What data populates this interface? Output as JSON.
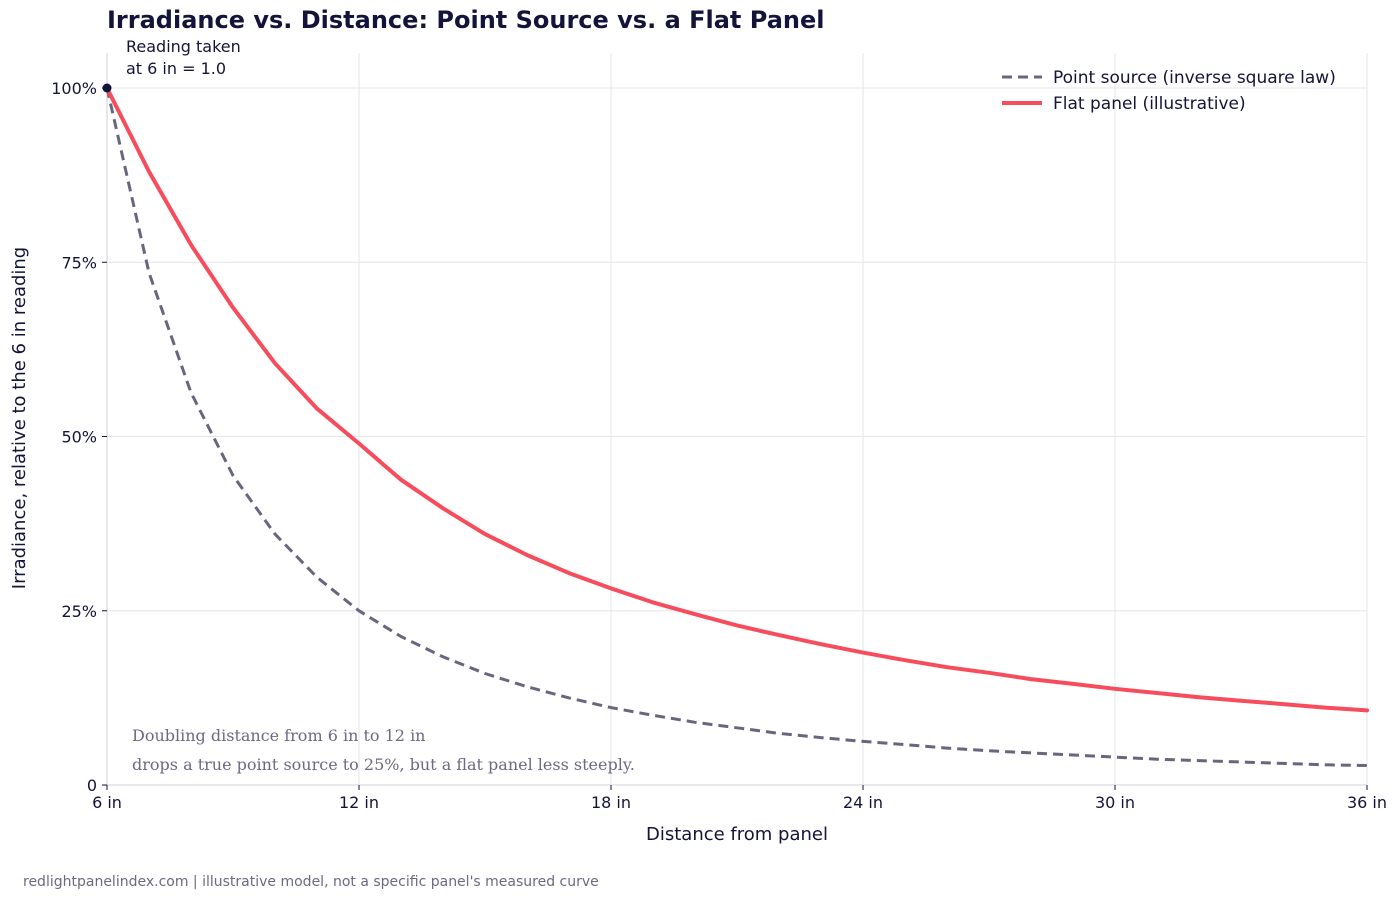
{
  "chart_data": {
    "type": "line",
    "title": "Irradiance vs. Distance: Point Source vs. a Flat Panel",
    "xlabel": "Distance from panel",
    "ylabel": "Irradiance, relative to the 6 in reading",
    "xlim": [
      6,
      36
    ],
    "ylim": [
      0,
      1.05
    ],
    "x_ticks": [
      6,
      12,
      18,
      24,
      30,
      36
    ],
    "x_tick_labels": [
      "6 in",
      "12 in",
      "18 in",
      "24 in",
      "30 in",
      "36 in"
    ],
    "y_ticks": [
      0,
      0.25,
      0.5,
      0.75,
      1.0
    ],
    "y_tick_labels": [
      "0",
      "25%",
      "50%",
      "75%",
      "100%"
    ],
    "grid": true,
    "legend_position": "top-right",
    "series": [
      {
        "name": "Point source (inverse square law)",
        "color": "#67667f",
        "style": "dashed",
        "x": [
          6,
          7,
          8,
          9,
          10,
          11,
          12,
          13,
          14,
          15,
          16,
          17,
          18,
          19,
          20,
          21,
          22,
          23,
          24,
          25,
          26,
          27,
          28,
          29,
          30,
          31,
          32,
          33,
          34,
          35,
          36
        ],
        "y": [
          1.0,
          0.735,
          0.563,
          0.444,
          0.36,
          0.298,
          0.25,
          0.213,
          0.184,
          0.16,
          0.141,
          0.125,
          0.111,
          0.1,
          0.09,
          0.082,
          0.074,
          0.068,
          0.0625,
          0.058,
          0.053,
          0.049,
          0.046,
          0.043,
          0.04,
          0.037,
          0.035,
          0.033,
          0.031,
          0.029,
          0.028
        ]
      },
      {
        "name": "Flat panel (illustrative)",
        "color": "#f74c5c",
        "style": "solid",
        "x": [
          6,
          7,
          8,
          9,
          10,
          11,
          12,
          13,
          14,
          15,
          16,
          17,
          18,
          19,
          20,
          21,
          22,
          23,
          24,
          25,
          26,
          27,
          28,
          29,
          30,
          31,
          32,
          33,
          34,
          35,
          36
        ],
        "y": [
          1.0,
          0.88,
          0.775,
          0.685,
          0.605,
          0.54,
          0.49,
          0.438,
          0.397,
          0.36,
          0.33,
          0.304,
          0.282,
          0.262,
          0.245,
          0.229,
          0.215,
          0.202,
          0.19,
          0.179,
          0.169,
          0.161,
          0.152,
          0.145,
          0.138,
          0.132,
          0.126,
          0.121,
          0.116,
          0.111,
          0.107
        ]
      }
    ],
    "annotations": {
      "marker": {
        "x": 6,
        "y": 1.0
      },
      "marker_label_lines": [
        "Reading taken",
        "at 6 in = 1.0"
      ],
      "note_lines": [
        "Doubling distance from 6 in to 12 in",
        "drops a true point source to 25%, but a flat panel less steeply."
      ]
    }
  },
  "footer": "redlightpanelindex.com | illustrative model, not a specific panel's measured curve"
}
